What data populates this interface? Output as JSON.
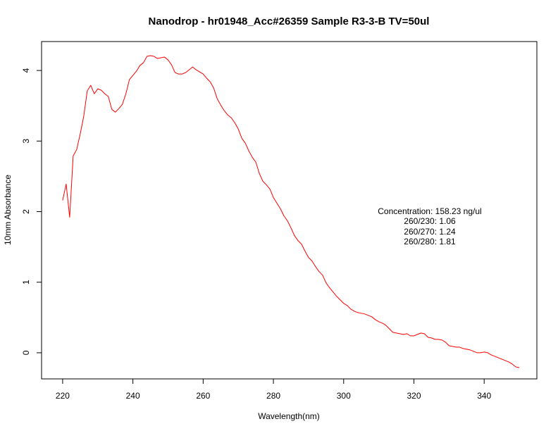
{
  "chart_data": {
    "type": "line",
    "title": "Nanodrop - hr01948_Acc#26359 Sample R3-3-B  TV=50ul",
    "xlabel": "Wavelength(nm)",
    "ylabel": "10mm Absorbance",
    "xlim": [
      214.0,
      355.0
    ],
    "ylim": [
      -0.37,
      4.41
    ],
    "x_ticks": [
      220,
      240,
      260,
      280,
      300,
      320,
      340
    ],
    "y_ticks": [
      0,
      1,
      2,
      3,
      4
    ],
    "grid": false,
    "line_color": "#ff0000",
    "series": [
      {
        "x": [
          220,
          221,
          222,
          223,
          224,
          225,
          226,
          227,
          228,
          229,
          230,
          231,
          232,
          233,
          234,
          235,
          236,
          237,
          238,
          239,
          240,
          241,
          242,
          243,
          244,
          245,
          246,
          247,
          248,
          249,
          250,
          251,
          252,
          253,
          254,
          255,
          256,
          257,
          258,
          259,
          260,
          261,
          262,
          263,
          264,
          265,
          266,
          267,
          268,
          269,
          270,
          271,
          272,
          273,
          274,
          275,
          276,
          277,
          278,
          279,
          280,
          281,
          282,
          283,
          284,
          285,
          286,
          287,
          288,
          289,
          290,
          291,
          292,
          293,
          294,
          295,
          296,
          297,
          298,
          299,
          300,
          301,
          302,
          303,
          304,
          305,
          306,
          307,
          308,
          309,
          310,
          311,
          312,
          313,
          314,
          315,
          316,
          317,
          318,
          319,
          320,
          321,
          322,
          323,
          324,
          325,
          326,
          327,
          328,
          329,
          330,
          331,
          332,
          333,
          334,
          335,
          336,
          337,
          338,
          339,
          340,
          341,
          342,
          343,
          344,
          345,
          346,
          347,
          348,
          349,
          350
        ],
        "y": [
          2.16,
          2.39,
          1.92,
          2.79,
          2.88,
          3.1,
          3.35,
          3.71,
          3.79,
          3.67,
          3.74,
          3.72,
          3.67,
          3.63,
          3.45,
          3.41,
          3.46,
          3.52,
          3.67,
          3.87,
          3.93,
          3.99,
          4.07,
          4.11,
          4.2,
          4.21,
          4.2,
          4.17,
          4.18,
          4.19,
          4.15,
          4.08,
          3.97,
          3.95,
          3.95,
          3.97,
          4.01,
          4.05,
          4.01,
          3.98,
          3.95,
          3.89,
          3.84,
          3.75,
          3.6,
          3.51,
          3.43,
          3.37,
          3.33,
          3.26,
          3.17,
          3.04,
          2.97,
          2.86,
          2.77,
          2.7,
          2.54,
          2.43,
          2.38,
          2.32,
          2.2,
          2.12,
          2.04,
          1.94,
          1.87,
          1.77,
          1.66,
          1.59,
          1.54,
          1.44,
          1.35,
          1.3,
          1.22,
          1.15,
          1.1,
          0.99,
          0.92,
          0.86,
          0.8,
          0.75,
          0.7,
          0.67,
          0.62,
          0.59,
          0.57,
          0.56,
          0.55,
          0.53,
          0.51,
          0.47,
          0.44,
          0.42,
          0.39,
          0.34,
          0.29,
          0.28,
          0.27,
          0.26,
          0.27,
          0.24,
          0.24,
          0.26,
          0.28,
          0.27,
          0.22,
          0.21,
          0.19,
          0.19,
          0.18,
          0.15,
          0.1,
          0.09,
          0.08,
          0.08,
          0.06,
          0.05,
          0.04,
          0.02,
          0,
          0,
          0.01,
          0,
          -0.03,
          -0.05,
          -0.07,
          -0.09,
          -0.11,
          -0.13,
          -0.16,
          -0.2,
          -0.21
        ]
      }
    ],
    "annotations": [
      "Concentration: 158.23 ng/ul",
      "260/230: 1.06",
      "260/270: 1.24",
      "260/280: 1.81"
    ]
  }
}
